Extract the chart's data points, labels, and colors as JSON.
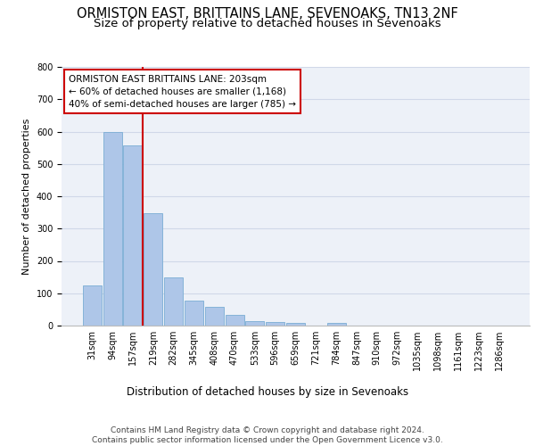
{
  "title1": "ORMISTON EAST, BRITTAINS LANE, SEVENOAKS, TN13 2NF",
  "title2": "Size of property relative to detached houses in Sevenoaks",
  "xlabel": "Distribution of detached houses by size in Sevenoaks",
  "ylabel": "Number of detached properties",
  "categories": [
    "31sqm",
    "94sqm",
    "157sqm",
    "219sqm",
    "282sqm",
    "345sqm",
    "408sqm",
    "470sqm",
    "533sqm",
    "596sqm",
    "659sqm",
    "721sqm",
    "784sqm",
    "847sqm",
    "910sqm",
    "972sqm",
    "1035sqm",
    "1098sqm",
    "1161sqm",
    "1223sqm",
    "1286sqm"
  ],
  "values": [
    125,
    600,
    557,
    347,
    150,
    77,
    57,
    33,
    15,
    12,
    8,
    0,
    7,
    0,
    0,
    0,
    0,
    0,
    0,
    0,
    0
  ],
  "bar_color": "#aec6e8",
  "bar_edge_color": "#7aadd4",
  "vline_color": "#cc0000",
  "annotation_text": "ORMISTON EAST BRITTAINS LANE: 203sqm\n← 60% of detached houses are smaller (1,168)\n40% of semi-detached houses are larger (785) →",
  "annotation_box_color": "#ffffff",
  "annotation_box_edge_color": "#cc0000",
  "ylim": [
    0,
    800
  ],
  "yticks": [
    0,
    100,
    200,
    300,
    400,
    500,
    600,
    700,
    800
  ],
  "grid_color": "#d0d8e8",
  "background_color": "#edf1f8",
  "footer_text": "Contains HM Land Registry data © Crown copyright and database right 2024.\nContains public sector information licensed under the Open Government Licence v3.0.",
  "title1_fontsize": 10.5,
  "title2_fontsize": 9.5,
  "xlabel_fontsize": 8.5,
  "ylabel_fontsize": 8,
  "tick_fontsize": 7,
  "annotation_fontsize": 7.5,
  "footer_fontsize": 6.5
}
